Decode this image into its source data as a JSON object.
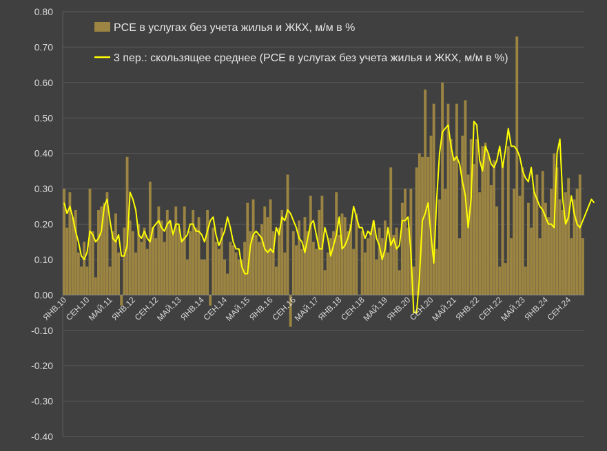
{
  "chart_data": {
    "type": "bar",
    "title": "",
    "xlabel": "",
    "ylabel": "",
    "ylim": [
      -0.4,
      0.8
    ],
    "y_ticks": [
      "0.80",
      "0.70",
      "0.60",
      "0.50",
      "0.40",
      "0.30",
      "0.20",
      "0.10",
      "0.00",
      "-0.10",
      "-0.20",
      "-0.30",
      "-0.40"
    ],
    "x_tick_labels": [
      {
        "label": "ЯНВ.10",
        "index": 0
      },
      {
        "label": "СЕН.10",
        "index": 8
      },
      {
        "label": "МАЙ.11",
        "index": 16
      },
      {
        "label": "ЯНВ.12",
        "index": 24
      },
      {
        "label": "СЕН.12",
        "index": 32
      },
      {
        "label": "МАЙ.13",
        "index": 40
      },
      {
        "label": "ЯНВ.14",
        "index": 48
      },
      {
        "label": "СЕН.14",
        "index": 56
      },
      {
        "label": "МАЙ.15",
        "index": 64
      },
      {
        "label": "ЯНВ.16",
        "index": 72
      },
      {
        "label": "СЕН.16",
        "index": 80
      },
      {
        "label": "МАЙ.17",
        "index": 88
      },
      {
        "label": "ЯНВ.18",
        "index": 96
      },
      {
        "label": "СЕН.18",
        "index": 104
      },
      {
        "label": "МАЙ.19",
        "index": 112
      },
      {
        "label": "ЯНВ.20",
        "index": 120
      },
      {
        "label": "СЕН.20",
        "index": 128
      },
      {
        "label": "МАЙ.21",
        "index": 136
      },
      {
        "label": "ЯНВ.22",
        "index": 144
      },
      {
        "label": "СЕН.22",
        "index": 152
      },
      {
        "label": "МАЙ.23",
        "index": 160
      },
      {
        "label": "ЯНВ.24",
        "index": 168
      },
      {
        "label": "СЕН.24",
        "index": 176
      }
    ],
    "grid": true,
    "legend_position": "top-left",
    "colors": {
      "bar": "#9c8542",
      "line": "#ffff00",
      "grid": "#5c5c5c",
      "background": "#404040",
      "axis": "#8c8c8c"
    },
    "series": [
      {
        "name": "PCE в услугах без учета жилья и ЖКХ, м/м в %",
        "kind": "bar",
        "values": [
          0.3,
          0.19,
          0.29,
          0.22,
          0.24,
          0.12,
          0.08,
          0.15,
          0.08,
          0.3,
          0.18,
          0.05,
          0.24,
          0.25,
          0.26,
          0.29,
          0.08,
          0.18,
          0.23,
          0.12,
          -0.03,
          0.19,
          0.39,
          0.21,
          0.18,
          0.12,
          0.2,
          0.15,
          0.19,
          0.13,
          0.32,
          0.19,
          0.16,
          0.25,
          0.21,
          0.15,
          0.24,
          0.21,
          0.17,
          0.25,
          0.19,
          0.16,
          0.25,
          0.1,
          0.18,
          0.24,
          0.19,
          0.22,
          0.1,
          0.1,
          0.24,
          -0.03,
          0.19,
          0.15,
          0.13,
          0.19,
          0.1,
          0.06,
          0.15,
          0.14,
          0.12,
          0.1,
          0.1,
          0.15,
          0.26,
          0.18,
          0.27,
          0.17,
          0.15,
          0.2,
          0.25,
          0.22,
          0.27,
          0.18,
          0.08,
          0.19,
          0.24,
          0.12,
          0.34,
          -0.09,
          0.18,
          0.14,
          0.21,
          0.13,
          0.22,
          0.18,
          0.28,
          0.15,
          0.13,
          0.24,
          0.28,
          0.07,
          0.12,
          0.16,
          0.18,
          0.29,
          0.17,
          0.23,
          0.22,
          0.18,
          0.2,
          0.13,
          0.23,
          0.0,
          0.18,
          0.12,
          0.16,
          0.18,
          0.21,
          0.1,
          0.19,
          0.16,
          0.21,
          0.12,
          0.36,
          0.17,
          0.19,
          0.07,
          0.26,
          0.3,
          0.19,
          0.3,
          0.08,
          0.36,
          0.4,
          0.39,
          0.58,
          0.39,
          0.45,
          0.54,
          0.13,
          0.27,
          0.6,
          0.3,
          0.54,
          0.44,
          0.39,
          0.54,
          0.16,
          0.45,
          0.55,
          0.34,
          0.44,
          0.37,
          0.44,
          0.29,
          0.42,
          0.43,
          0.4,
          0.31,
          0.38,
          0.25,
          0.08,
          0.37,
          0.09,
          0.42,
          0.16,
          0.3,
          0.73,
          0.28,
          0.36,
          0.08,
          0.26,
          0.19,
          0.29,
          0.34,
          0.16,
          0.35,
          0.26,
          0.22,
          0.3,
          0.4,
          0.36,
          0.27,
          0.24,
          0.29,
          0.33,
          0.16,
          0.27,
          0.3,
          0.34,
          0.16
        ]
      },
      {
        "name": "3 пер.: скользящее среднее (PCE в услугах без учета жилья и ЖКХ, м/м в %)",
        "kind": "line",
        "values": [
          0.26,
          0.23,
          0.25,
          0.22,
          0.18,
          0.15,
          0.11,
          0.1,
          0.12,
          0.18,
          0.17,
          0.15,
          0.16,
          0.18,
          0.25,
          0.27,
          0.21,
          0.16,
          0.15,
          0.17,
          0.11,
          0.11,
          0.14,
          0.29,
          0.27,
          0.24,
          0.17,
          0.16,
          0.18,
          0.16,
          0.15,
          0.19,
          0.2,
          0.21,
          0.19,
          0.18,
          0.2,
          0.21,
          0.17,
          0.2,
          0.2,
          0.15,
          0.16,
          0.17,
          0.2,
          0.2,
          0.18,
          0.18,
          0.17,
          0.15,
          0.18,
          0.21,
          0.22,
          0.17,
          0.14,
          0.16,
          0.18,
          0.22,
          0.19,
          0.15,
          0.13,
          0.13,
          0.08,
          0.06,
          0.06,
          0.14,
          0.17,
          0.18,
          0.17,
          0.16,
          0.13,
          0.12,
          0.13,
          0.12,
          0.19,
          0.17,
          0.22,
          0.21,
          0.24,
          0.23,
          0.21,
          0.19,
          0.16,
          0.15,
          0.12,
          0.16,
          0.2,
          0.21,
          0.17,
          0.13,
          0.13,
          0.19,
          0.16,
          0.11,
          0.14,
          0.17,
          0.22,
          0.13,
          0.14,
          0.16,
          0.19,
          0.25,
          0.22,
          0.19,
          0.19,
          0.16,
          0.18,
          0.17,
          0.21,
          0.16,
          0.14,
          0.1,
          0.13,
          0.19,
          0.14,
          0.16,
          0.13,
          0.14,
          0.21,
          0.21,
          0.22,
          0.12,
          -0.05,
          -0.05,
          0.05,
          0.21,
          0.23,
          0.26,
          0.17,
          0.09,
          0.27,
          0.4,
          0.46,
          0.47,
          0.48,
          0.42,
          0.38,
          0.39,
          0.37,
          0.32,
          0.28,
          0.19,
          0.27,
          0.49,
          0.48,
          0.38,
          0.35,
          0.42,
          0.4,
          0.37,
          0.36,
          0.38,
          0.42,
          0.36,
          0.41,
          0.47,
          0.42,
          0.42,
          0.41,
          0.39,
          0.35,
          0.33,
          0.32,
          0.36,
          0.29,
          0.27,
          0.25,
          0.24,
          0.22,
          0.2,
          0.2,
          0.19,
          0.4,
          0.44,
          0.27,
          0.2,
          0.22,
          0.28,
          0.23,
          0.2,
          0.19,
          0.21,
          0.23,
          0.25,
          0.27,
          0.26
        ]
      }
    ]
  }
}
